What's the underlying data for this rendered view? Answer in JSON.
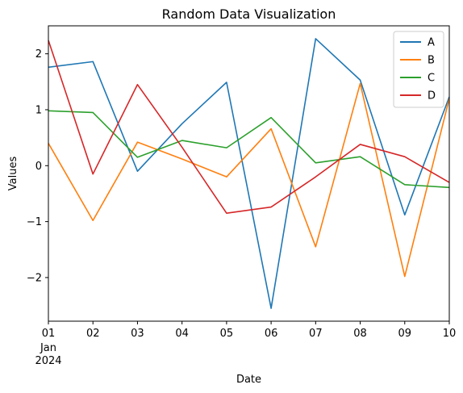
{
  "chart_data": {
    "type": "line",
    "title": "Random Data Visualization",
    "xlabel": "Date",
    "ylabel": "Values",
    "x": [
      "2024-01-01",
      "2024-01-02",
      "2024-01-03",
      "2024-01-04",
      "2024-01-05",
      "2024-01-06",
      "2024-01-07",
      "2024-01-08",
      "2024-01-09",
      "2024-01-10"
    ],
    "x_tick_labels": [
      "01",
      "02",
      "03",
      "04",
      "05",
      "06",
      "07",
      "08",
      "09",
      "10"
    ],
    "x_tick_sublabel": [
      "Jan",
      "2024"
    ],
    "y_ticks": [
      -2,
      -1,
      0,
      1,
      2
    ],
    "y_tick_labels": [
      "−2",
      "−1",
      "0",
      "1",
      "2"
    ],
    "ylim": [
      -2.78,
      2.5
    ],
    "grid": false,
    "legend_position": "top-right",
    "series": [
      {
        "name": "A",
        "color": "#1f77b4",
        "values": [
          1.76,
          1.86,
          -0.1,
          0.75,
          1.49,
          -2.55,
          2.27,
          1.53,
          -0.88,
          1.23
        ]
      },
      {
        "name": "B",
        "color": "#ff7f0e",
        "values": [
          0.4,
          -0.98,
          0.42,
          0.12,
          -0.2,
          0.66,
          -1.45,
          1.47,
          -1.98,
          1.2
        ]
      },
      {
        "name": "C",
        "color": "#2ca02c",
        "values": [
          0.98,
          0.95,
          0.15,
          0.45,
          0.32,
          0.86,
          0.05,
          0.16,
          -0.34,
          -0.39
        ]
      },
      {
        "name": "D",
        "color": "#d62728",
        "values": [
          2.24,
          -0.15,
          1.45,
          0.33,
          -0.85,
          -0.74,
          -0.2,
          0.38,
          0.16,
          -0.3
        ]
      }
    ]
  }
}
